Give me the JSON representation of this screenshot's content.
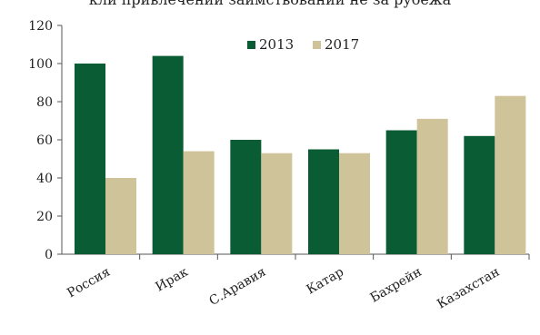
{
  "top_text": "кли привлечении заимствований не за рубежа",
  "chart_data": {
    "type": "bar",
    "categories": [
      "Россия",
      "Ирак",
      "С.Аравия",
      "Катар",
      "Бахрейн",
      "Казахстан"
    ],
    "series": [
      {
        "name": "2013",
        "values": [
          100,
          104,
          60,
          55,
          65,
          62
        ]
      },
      {
        "name": "2017",
        "values": [
          40,
          54,
          53,
          53,
          71,
          83
        ]
      }
    ],
    "ylim": [
      0,
      120
    ],
    "yticks": [
      0,
      20,
      40,
      60,
      80,
      100,
      120
    ],
    "grid": false,
    "legend": "top-center",
    "colors": {
      "2013": "#0a5c34",
      "2017": "#cfc39a"
    }
  }
}
